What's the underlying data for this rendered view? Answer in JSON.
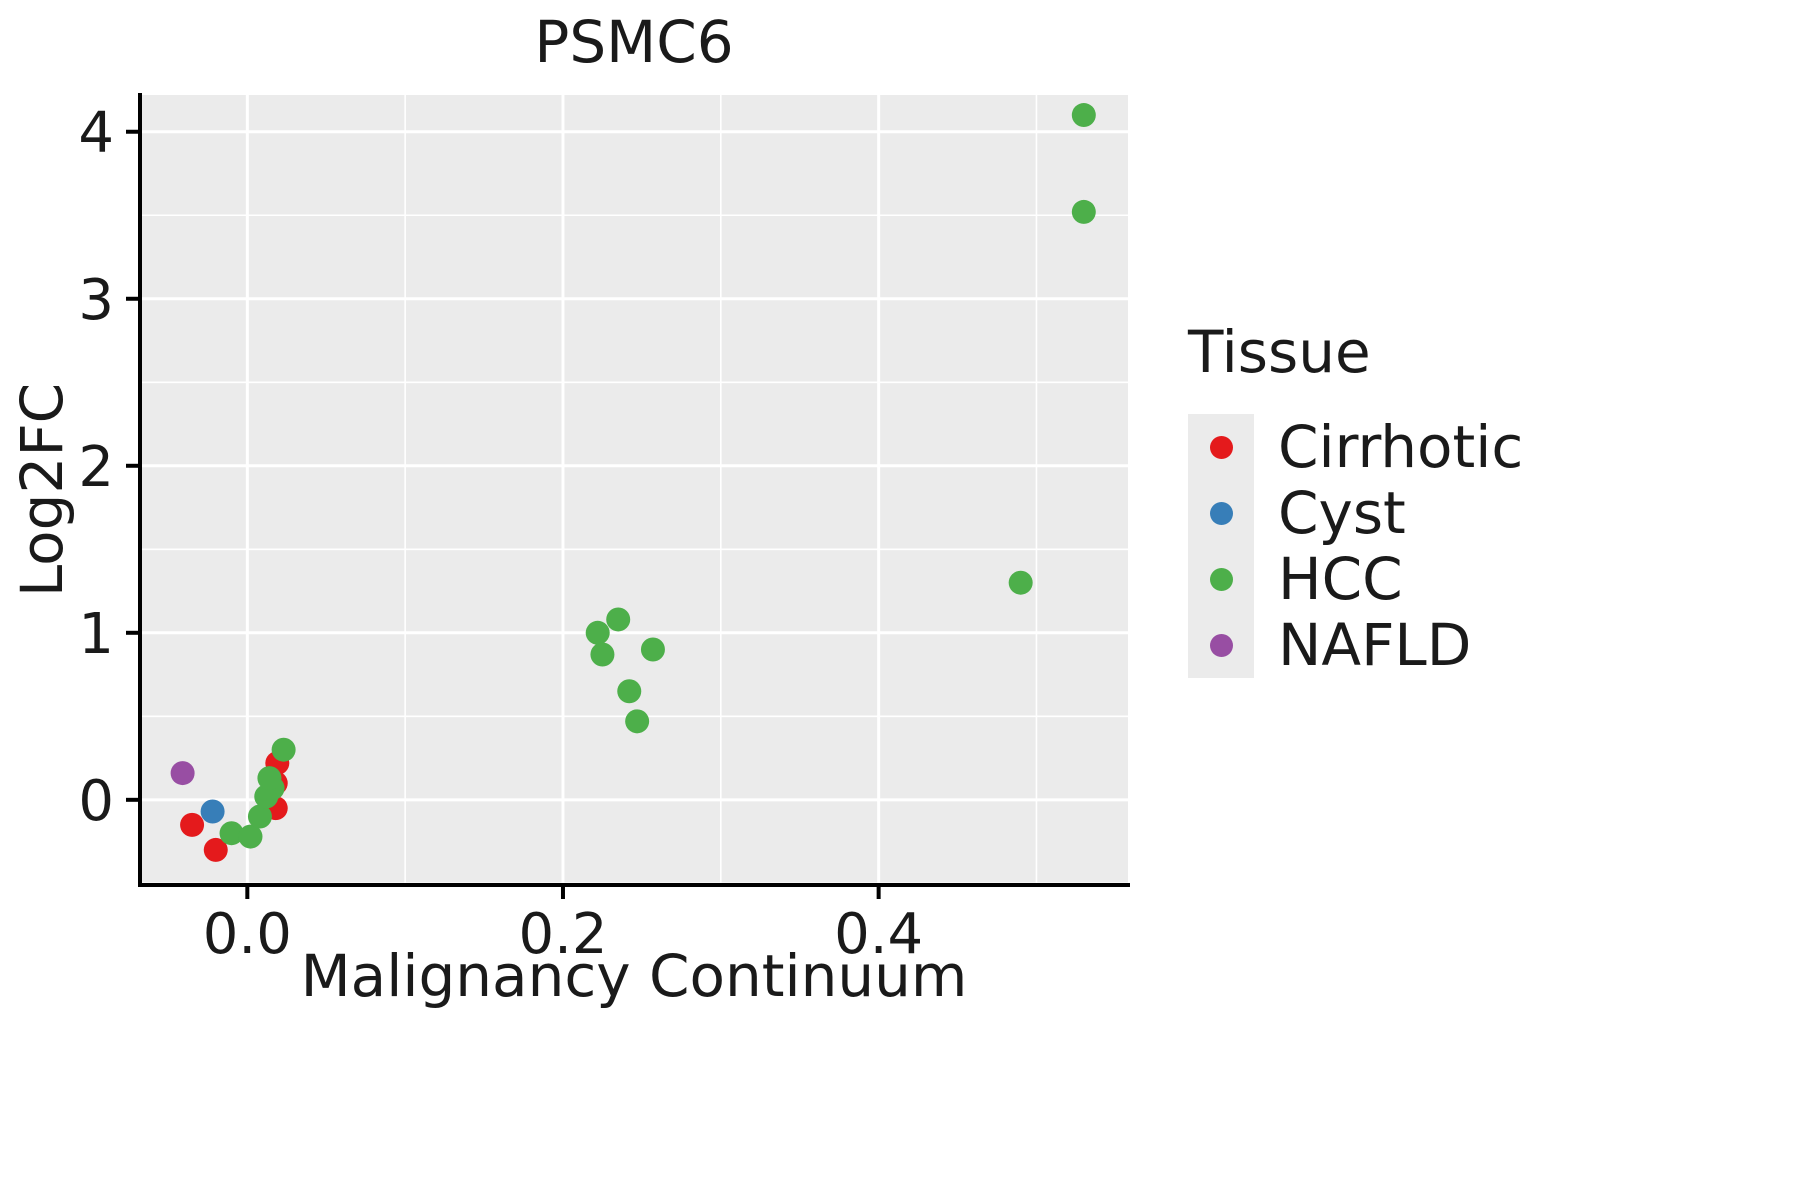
{
  "chart_data": {
    "type": "scatter",
    "title": "PSMC6",
    "xlabel": "Malignancy Continuum",
    "ylabel": "Log2FC",
    "xlim": [
      -0.068,
      0.558
    ],
    "ylim": [
      -0.51,
      4.22
    ],
    "x_ticks": {
      "values": [
        0.0,
        0.2,
        0.4
      ],
      "labels": [
        "0.0",
        "0.2",
        "0.4"
      ]
    },
    "y_ticks": {
      "values": [
        0,
        1,
        2,
        3,
        4
      ],
      "labels": [
        "0",
        "1",
        "2",
        "3",
        "4"
      ]
    },
    "x_minor_ticks": [
      0.1,
      0.3,
      0.5
    ],
    "y_minor_ticks": [
      -0.5,
      0.5,
      1.5,
      2.5,
      3.5
    ],
    "grid": true,
    "panel_background": "#EBEBEB",
    "grid_color": "#FFFFFF",
    "axis_color": "#000000",
    "legend": {
      "title": "Tissue",
      "position": "right"
    },
    "series": [
      {
        "name": "Cirrhotic",
        "color": "#E41A1C",
        "points": [
          [
            -0.035,
            -0.15
          ],
          [
            -0.02,
            -0.3
          ],
          [
            0.018,
            -0.05
          ],
          [
            0.018,
            0.1
          ],
          [
            0.019,
            0.22
          ]
        ]
      },
      {
        "name": "Cyst",
        "color": "#377EB8",
        "points": [
          [
            -0.022,
            -0.07
          ]
        ]
      },
      {
        "name": "HCC",
        "color": "#4DAF4A",
        "points": [
          [
            -0.01,
            -0.2
          ],
          [
            0.002,
            -0.22
          ],
          [
            0.008,
            -0.1
          ],
          [
            0.012,
            0.02
          ],
          [
            0.016,
            0.07
          ],
          [
            0.014,
            0.13
          ],
          [
            0.023,
            0.3
          ],
          [
            0.222,
            1.0
          ],
          [
            0.235,
            1.08
          ],
          [
            0.225,
            0.87
          ],
          [
            0.257,
            0.9
          ],
          [
            0.242,
            0.65
          ],
          [
            0.247,
            0.47
          ],
          [
            0.49,
            1.3
          ],
          [
            0.53,
            3.52
          ],
          [
            0.53,
            4.1
          ]
        ]
      },
      {
        "name": "NAFLD",
        "color": "#984EA3",
        "points": [
          [
            -0.041,
            0.16
          ]
        ]
      }
    ]
  }
}
